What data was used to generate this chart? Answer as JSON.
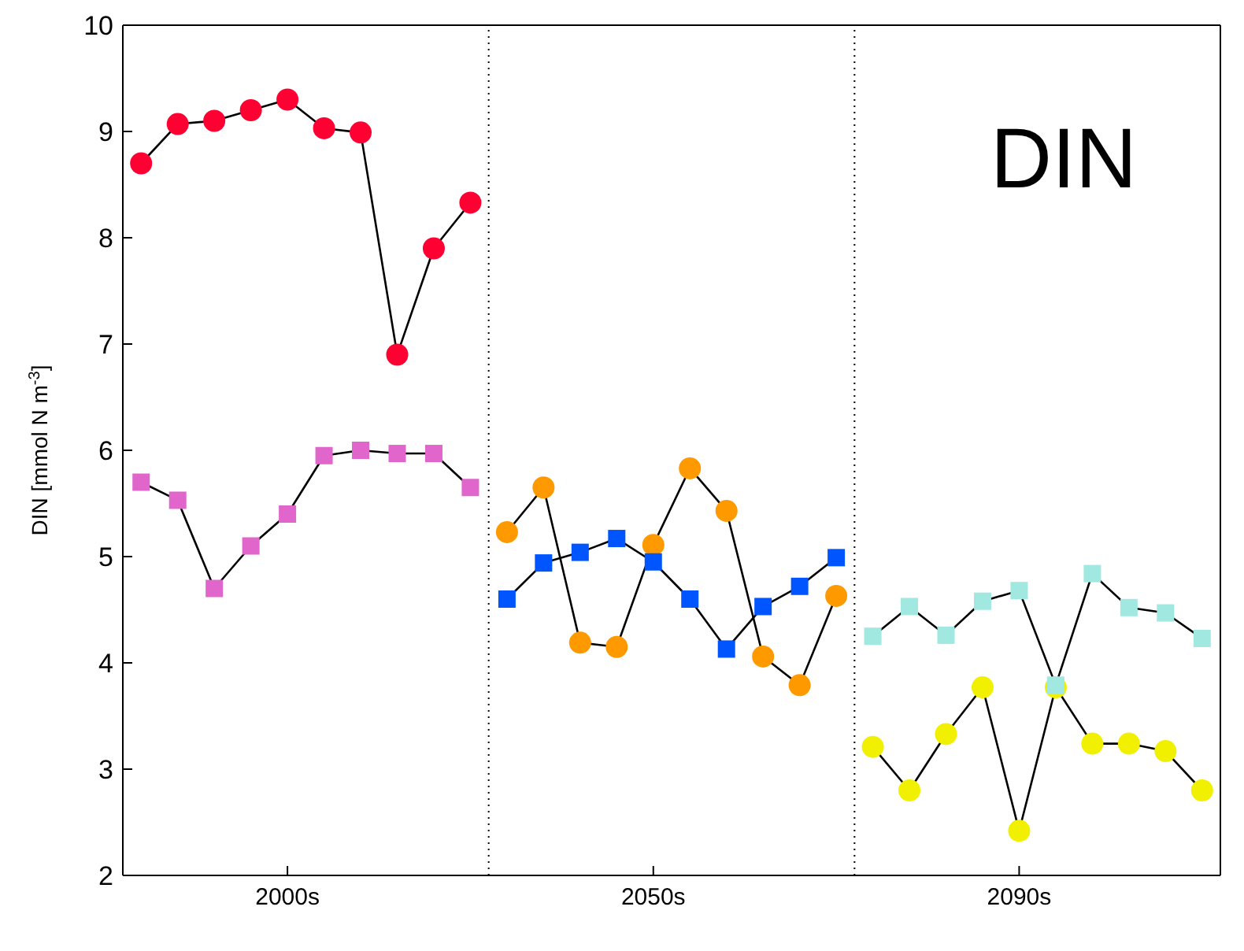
{
  "chart_data": {
    "type": "line",
    "ylabel": "DIN [mmol N m$^{-3}$]",
    "annotations": [
      "DIN"
    ],
    "categories": [
      null,
      null,
      null,
      null,
      "2000s",
      null,
      null,
      null,
      null,
      null,
      null,
      null,
      null,
      null,
      "2050s",
      null,
      null,
      null,
      null,
      null,
      null,
      null,
      null,
      null,
      "2090s",
      null,
      null,
      null,
      null,
      null
    ],
    "ylim": [
      2,
      10
    ],
    "yticks": [
      2,
      3,
      4,
      5,
      6,
      7,
      8,
      9,
      10
    ],
    "line_style": "solid",
    "series": [
      {
        "color": "#ff0033",
        "marker": "circle",
        "values": [
          8.7,
          9.07,
          9.1,
          9.2,
          9.3,
          9.03,
          8.99,
          6.9,
          7.9,
          8.33,
          null,
          null,
          null,
          null,
          null,
          null,
          null,
          null,
          null,
          null,
          null,
          null,
          null,
          null,
          null,
          null,
          null,
          null,
          null,
          null
        ]
      },
      {
        "color": "#e066cc",
        "marker": "square",
        "values": [
          5.7,
          5.53,
          4.7,
          5.1,
          5.4,
          5.95,
          6.0,
          5.97,
          5.97,
          5.65,
          null,
          null,
          null,
          null,
          null,
          null,
          null,
          null,
          null,
          null,
          null,
          null,
          null,
          null,
          null,
          null,
          null,
          null,
          null,
          null
        ]
      },
      {
        "color": "#ff9900",
        "marker": "circle",
        "values": [
          null,
          null,
          null,
          null,
          null,
          null,
          null,
          null,
          null,
          null,
          5.23,
          5.65,
          4.19,
          4.15,
          5.11,
          5.83,
          5.43,
          4.06,
          3.79,
          4.63,
          null,
          null,
          null,
          null,
          null,
          null,
          null,
          null,
          null,
          null
        ]
      },
      {
        "color": "#0055ff",
        "marker": "square",
        "values": [
          null,
          null,
          null,
          null,
          null,
          null,
          null,
          null,
          null,
          null,
          4.6,
          4.94,
          5.04,
          5.17,
          4.95,
          4.6,
          4.13,
          4.53,
          4.72,
          4.99,
          null,
          null,
          null,
          null,
          null,
          null,
          null,
          null,
          null,
          null
        ]
      },
      {
        "color": "#a0e8e0",
        "marker": "square",
        "values": [
          null,
          null,
          null,
          null,
          null,
          null,
          null,
          null,
          null,
          null,
          null,
          null,
          null,
          null,
          null,
          null,
          null,
          null,
          null,
          null,
          4.25,
          4.53,
          4.26,
          4.58,
          4.68,
          3.79,
          4.84,
          4.52,
          4.47,
          4.23
        ]
      },
      {
        "color": "#f0f000",
        "marker": "circle",
        "values": [
          null,
          null,
          null,
          null,
          null,
          null,
          null,
          null,
          null,
          null,
          null,
          null,
          null,
          null,
          null,
          null,
          null,
          null,
          null,
          null,
          3.21,
          2.8,
          3.33,
          3.77,
          2.42,
          3.77,
          3.24,
          3.24,
          3.17,
          2.8
        ]
      }
    ]
  }
}
